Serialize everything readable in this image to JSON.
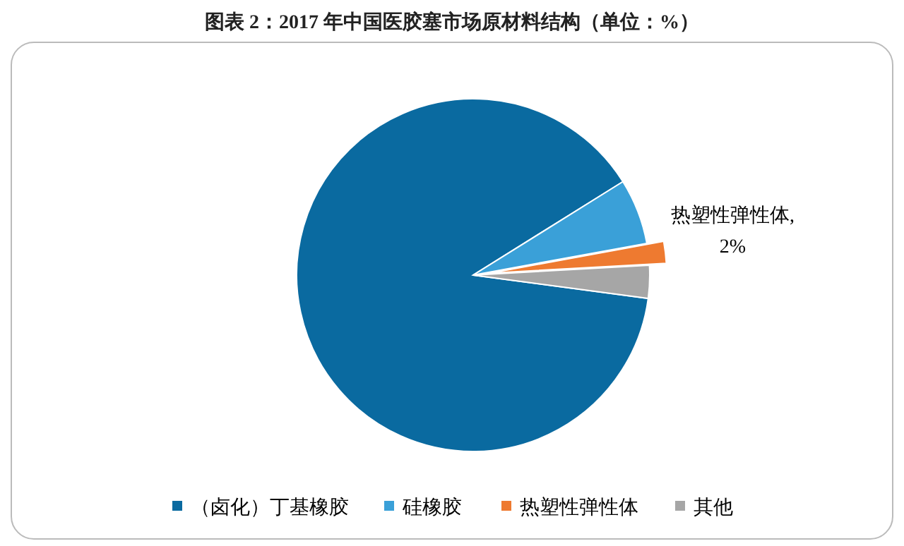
{
  "chart_data": {
    "type": "pie",
    "title": "图表 2：2017 年中国医胶塞市场原材料结构（单位：%）",
    "categories": [
      "（卤化）丁基橡胶",
      "硅橡胶",
      "热塑性弹性体",
      "其他"
    ],
    "values": [
      89,
      6,
      2,
      3
    ],
    "colors": [
      "#0a6aa0",
      "#3aa0d8",
      "#ee7a30",
      "#a6a6a6"
    ],
    "value_labels": [
      null,
      null,
      "热塑性弹性体, 2%",
      null
    ],
    "legend": "bottom"
  }
}
